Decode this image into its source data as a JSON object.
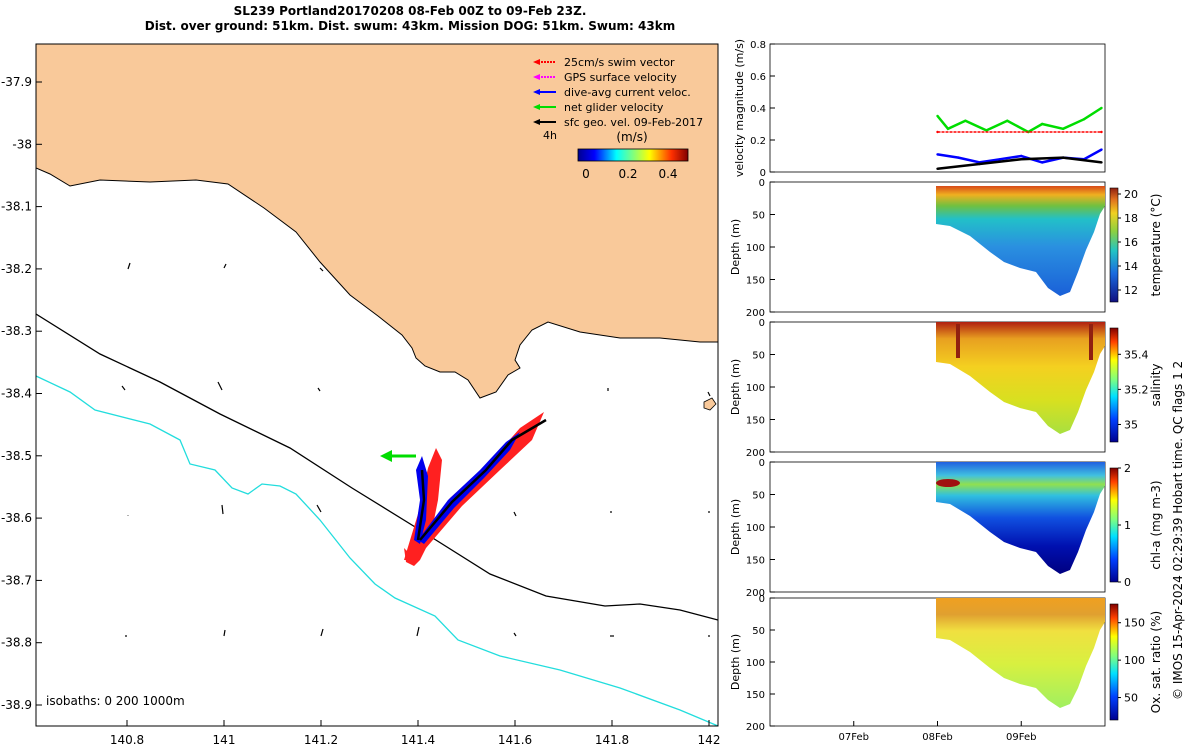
{
  "title_line1": "SL239 Portland20170208 08-Feb 00Z to 09-Feb 23Z.",
  "title_line2": "Dist. over ground: 51km. Dist. swum: 43km. Mission DOG: 51km. Swum: 43km",
  "side_label": "© IMOS 15-Apr-2024 02:29:39 Hobart time. QC flags 1 2",
  "map": {
    "lon_ticks": [
      "140.8",
      "141",
      "141.2",
      "141.4",
      "141.6",
      "141.8",
      "142"
    ],
    "lat_ticks": [
      "-37.9",
      "-38",
      "-38.1",
      "-38.2",
      "-38.3",
      "-38.4",
      "-38.5",
      "-38.6",
      "-38.7",
      "-38.8",
      "-38.9"
    ],
    "legend": [
      {
        "label": "25cm/s swim vector",
        "color": "#ff0000"
      },
      {
        "label": "GPS surface velocity",
        "color": "#ff00ff"
      },
      {
        "label": "dive-avg current veloc.",
        "color": "#0000ff"
      },
      {
        "label": "net glider velocity",
        "color": "#00dd00"
      },
      {
        "label": "sfc geo. vel. 09-Feb-2017",
        "color": "#000000"
      }
    ],
    "colorbar_title": "(m/s)",
    "colorbar_ticks": [
      "0",
      "0.2",
      "0.4"
    ],
    "time_label": "4h",
    "isobath_text": "isobaths: 0   200  1000m",
    "colors": {
      "land": "#f9c99a",
      "isobath200": "#000000",
      "isobath1000": "#22dddd"
    }
  },
  "chart_data": [
    {
      "type": "line",
      "ylabel": "velocity magnitude (m/s)",
      "ylim": [
        0,
        0.8
      ],
      "yticks": [
        "0",
        "0.2",
        "0.4",
        "0.6",
        "0.8"
      ],
      "x_dates": [
        "07Feb",
        "08Feb",
        "09Feb"
      ],
      "xlim": [
        "2017-02-06",
        "2017-02-10"
      ],
      "series": [
        {
          "name": "net glider velocity",
          "color": "#00dd00",
          "x": [
            "2017-02-08 00:00",
            "2017-02-08 03:00",
            "2017-02-08 08:00",
            "2017-02-08 14:00",
            "2017-02-08 20:00",
            "2017-02-09 02:00",
            "2017-02-09 06:00",
            "2017-02-09 12:00",
            "2017-02-09 18:00",
            "2017-02-09 23:00"
          ],
          "values": [
            0.35,
            0.27,
            0.32,
            0.26,
            0.32,
            0.25,
            0.3,
            0.27,
            0.33,
            0.4
          ]
        },
        {
          "name": "dive-avg current veloc.",
          "color": "#0000ff",
          "x": [
            "2017-02-08 00:00",
            "2017-02-08 06:00",
            "2017-02-08 12:00",
            "2017-02-08 18:00",
            "2017-02-09 00:00",
            "2017-02-09 06:00",
            "2017-02-09 12:00",
            "2017-02-09 18:00",
            "2017-02-09 23:00"
          ],
          "values": [
            0.11,
            0.09,
            0.06,
            0.08,
            0.1,
            0.06,
            0.09,
            0.08,
            0.14
          ]
        },
        {
          "name": "25cm/s swim vector",
          "color": "#ff0000",
          "x": [
            "2017-02-08 00:00",
            "2017-02-09 23:00"
          ],
          "values": [
            0.25,
            0.25
          ]
        },
        {
          "name": "sfc geo. vel. 09-Feb-2017",
          "color": "#000000",
          "x": [
            "2017-02-08 00:00",
            "2017-02-08 12:00",
            "2017-02-09 00:00",
            "2017-02-09 12:00",
            "2017-02-09 23:00"
          ],
          "values": [
            0.02,
            0.05,
            0.08,
            0.09,
            0.06
          ]
        }
      ]
    },
    {
      "type": "heatmap",
      "ylabel": "Depth (m)",
      "yticks": [
        "0",
        "50",
        "100",
        "150",
        "200"
      ],
      "colorbar_label": "temperature (°C)",
      "colorbar_ticks": [
        "12",
        "14",
        "16",
        "18",
        "20"
      ],
      "clim": [
        11,
        20.5
      ]
    },
    {
      "type": "heatmap",
      "ylabel": "Depth (m)",
      "yticks": [
        "0",
        "50",
        "100",
        "150",
        "200"
      ],
      "colorbar_label": "salinity",
      "colorbar_ticks": [
        "35",
        "35.2",
        "35.4"
      ],
      "clim": [
        34.9,
        35.55
      ]
    },
    {
      "type": "heatmap",
      "ylabel": "Depth (m)",
      "yticks": [
        "0",
        "50",
        "100",
        "150",
        "200"
      ],
      "colorbar_label": "chl-a (mg m-3)",
      "colorbar_ticks": [
        "0",
        "1",
        "2"
      ],
      "clim": [
        0,
        2
      ]
    },
    {
      "type": "heatmap",
      "ylabel": "Depth (m)",
      "yticks": [
        "0",
        "50",
        "100",
        "150",
        "200"
      ],
      "colorbar_label": "Ox. sat. ratio (%)",
      "colorbar_ticks": [
        "50",
        "100",
        "150"
      ],
      "clim": [
        20,
        175
      ]
    }
  ]
}
